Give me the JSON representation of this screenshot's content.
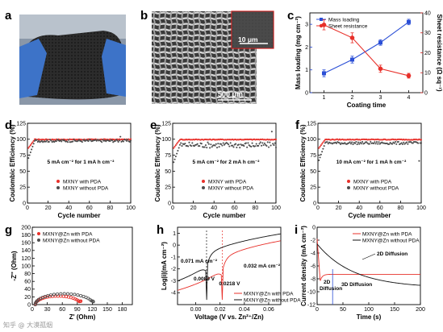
{
  "panel_labels": [
    "a",
    "b",
    "c",
    "d",
    "e",
    "f",
    "g",
    "h",
    "i"
  ],
  "photo_b": {
    "inset_scale": "10 μm",
    "main_scale": "500 μm"
  },
  "watermark": "知乎 @ 大漠孤烟",
  "colors": {
    "red": "#e8302a",
    "blue": "#2b4fd6",
    "gray": "#4d4d4d",
    "black": "#111111",
    "axis_blue": "#1f3fd0",
    "axis_red": "#e02020"
  },
  "chart_data": [
    {
      "id": "c",
      "type": "line",
      "xlabel": "Coating time",
      "x": [
        1,
        2,
        3,
        4
      ],
      "xlim": [
        0.5,
        4.5
      ],
      "xticks": [
        "1",
        "2",
        "3",
        "4"
      ],
      "ylabel": "Mass loading (mg cm⁻²)",
      "ylim": [
        0,
        3.5
      ],
      "yticks": [
        "0",
        "1",
        "2",
        "3"
      ],
      "y2label": "Sheet resistance (Ω sq⁻¹)",
      "y2lim": [
        0,
        40
      ],
      "y2ticks": [
        "0",
        "10",
        "20",
        "30",
        "40"
      ],
      "series": [
        {
          "name": "Mass loading",
          "axis": "left",
          "values": [
            0.85,
            1.45,
            2.2,
            3.1
          ],
          "err": [
            0.15,
            0.15,
            0.12,
            0.12
          ]
        },
        {
          "name": "Sheet resistance",
          "axis": "right",
          "values": [
            34,
            27.5,
            12,
            8.5
          ],
          "err": [
            2.5,
            2.5,
            1.8,
            1.2
          ]
        }
      ],
      "legend": "top-left"
    },
    {
      "id": "d",
      "type": "scatter",
      "annotation": "5 mA cm⁻² for 1 mA h cm⁻²",
      "xlabel": "Cycle number",
      "xlim": [
        0,
        100
      ],
      "xticks": [
        "0",
        "20",
        "40",
        "60",
        "80",
        "100"
      ],
      "ylabel": "Coulombic Efficiency (%)",
      "ylim": [
        0,
        125
      ],
      "yticks": [
        "0",
        "25",
        "50",
        "75",
        "100",
        "125"
      ],
      "series": [
        {
          "name": "MXNY with PDA",
          "plateau": 99.6
        },
        {
          "name": "MXNY without PDA",
          "plateau": 97.5
        }
      ],
      "legend": "bottom-center"
    },
    {
      "id": "e",
      "type": "scatter",
      "annotation": "5 mA cm⁻² for 2 mA h cm⁻²",
      "xlabel": "Cycle number",
      "xlim": [
        0,
        100
      ],
      "xticks": [
        "0",
        "20",
        "40",
        "60",
        "80",
        "100"
      ],
      "ylabel": "Coulombic Efficiency (%)",
      "ylim": [
        0,
        125
      ],
      "yticks": [
        "0",
        "25",
        "50",
        "75",
        "100",
        "125"
      ],
      "series": [
        {
          "name": "MXNY with PDA",
          "plateau": 99.5
        },
        {
          "name": "MXNY without PDA",
          "plateau": 91
        }
      ],
      "legend": "bottom-center"
    },
    {
      "id": "f",
      "type": "scatter",
      "annotation": "10 mA cm⁻² for 1 mA h cm⁻²",
      "xlabel": "Cycle number",
      "xlim": [
        0,
        100
      ],
      "xticks": [
        "0",
        "20",
        "40",
        "60",
        "80",
        "100"
      ],
      "ylabel": "Coulombic Efficiency (%)",
      "ylim": [
        0,
        125
      ],
      "yticks": [
        "0",
        "25",
        "50",
        "75",
        "100",
        "125"
      ],
      "series": [
        {
          "name": "MXNY with PDA",
          "plateau": 99.5
        },
        {
          "name": "MXNY without PDA",
          "plateau": 94
        }
      ],
      "legend": "bottom-center"
    },
    {
      "id": "g",
      "type": "scatter",
      "xlabel": "Z' (Ohm)",
      "xlim": [
        0,
        200
      ],
      "xticks": [
        "0",
        "30",
        "60",
        "90",
        "120",
        "150",
        "180"
      ],
      "ylabel": "-Z'' (Ohm)",
      "ylim": [
        0,
        200
      ],
      "yticks": [
        "0",
        "20",
        "40",
        "60",
        "80",
        "100",
        "120",
        "140",
        "160",
        "180",
        "200"
      ],
      "series": [
        {
          "name": "MXNY@Zn with PDA",
          "arc": {
            "start": 6,
            "end": 97,
            "peak": 22
          }
        },
        {
          "name": "MXNY@Zn without PDA",
          "arc": {
            "start": 6,
            "end": 122,
            "peak": 28
          }
        }
      ],
      "legend": "top-left"
    },
    {
      "id": "h",
      "type": "line",
      "xlabel": "Voltage (V vs. Zn²⁺/Zn)",
      "xlim": [
        -0.015,
        0.07
      ],
      "xticks": [
        "0.00",
        "0.02",
        "0.04",
        "0.06"
      ],
      "ylabel": "Log|i|(mA cm⁻²)",
      "ylim": [
        -5,
        1.5
      ],
      "yticks": [
        "-4",
        "-3",
        "-2",
        "-1",
        "0",
        "1"
      ],
      "series": [
        {
          "name": "MXNY@Zn with PDA",
          "corrosion_potential": 0.0218,
          "corrosion_current": "0.032 mA cm⁻²"
        },
        {
          "name": "MXNY@Zn without PDA",
          "corrosion_potential": 0.0089,
          "corrosion_current": "0.071 mA cm⁻²"
        }
      ],
      "annotations": [
        "0.071 mA cm⁻²",
        "0.0089 V",
        "0.0218 V",
        "0.032 mA cm⁻²"
      ],
      "legend": "bottom-right"
    },
    {
      "id": "i",
      "type": "line",
      "xlabel": "Time (s)",
      "xlim": [
        0,
        200
      ],
      "xticks": [
        "0",
        "50",
        "100",
        "150",
        "200"
      ],
      "ylabel": "Current density (mA cm⁻²)",
      "ylim": [
        -12,
        0
      ],
      "yticks": [
        "0",
        "-2",
        "-4",
        "-6",
        "-8",
        "-10",
        "-12"
      ],
      "series": [
        {
          "name": "MXNY@Zn with PDA",
          "start": -1.8,
          "min": -8.3,
          "end": -7.3
        },
        {
          "name": "MXNY@Zn without PDA",
          "start": -2.6,
          "end": -9.4
        }
      ],
      "annotations": [
        "2D Diffusion",
        "2D",
        "Diffusion",
        "3D Diffusion"
      ],
      "legend": "top-right"
    }
  ]
}
